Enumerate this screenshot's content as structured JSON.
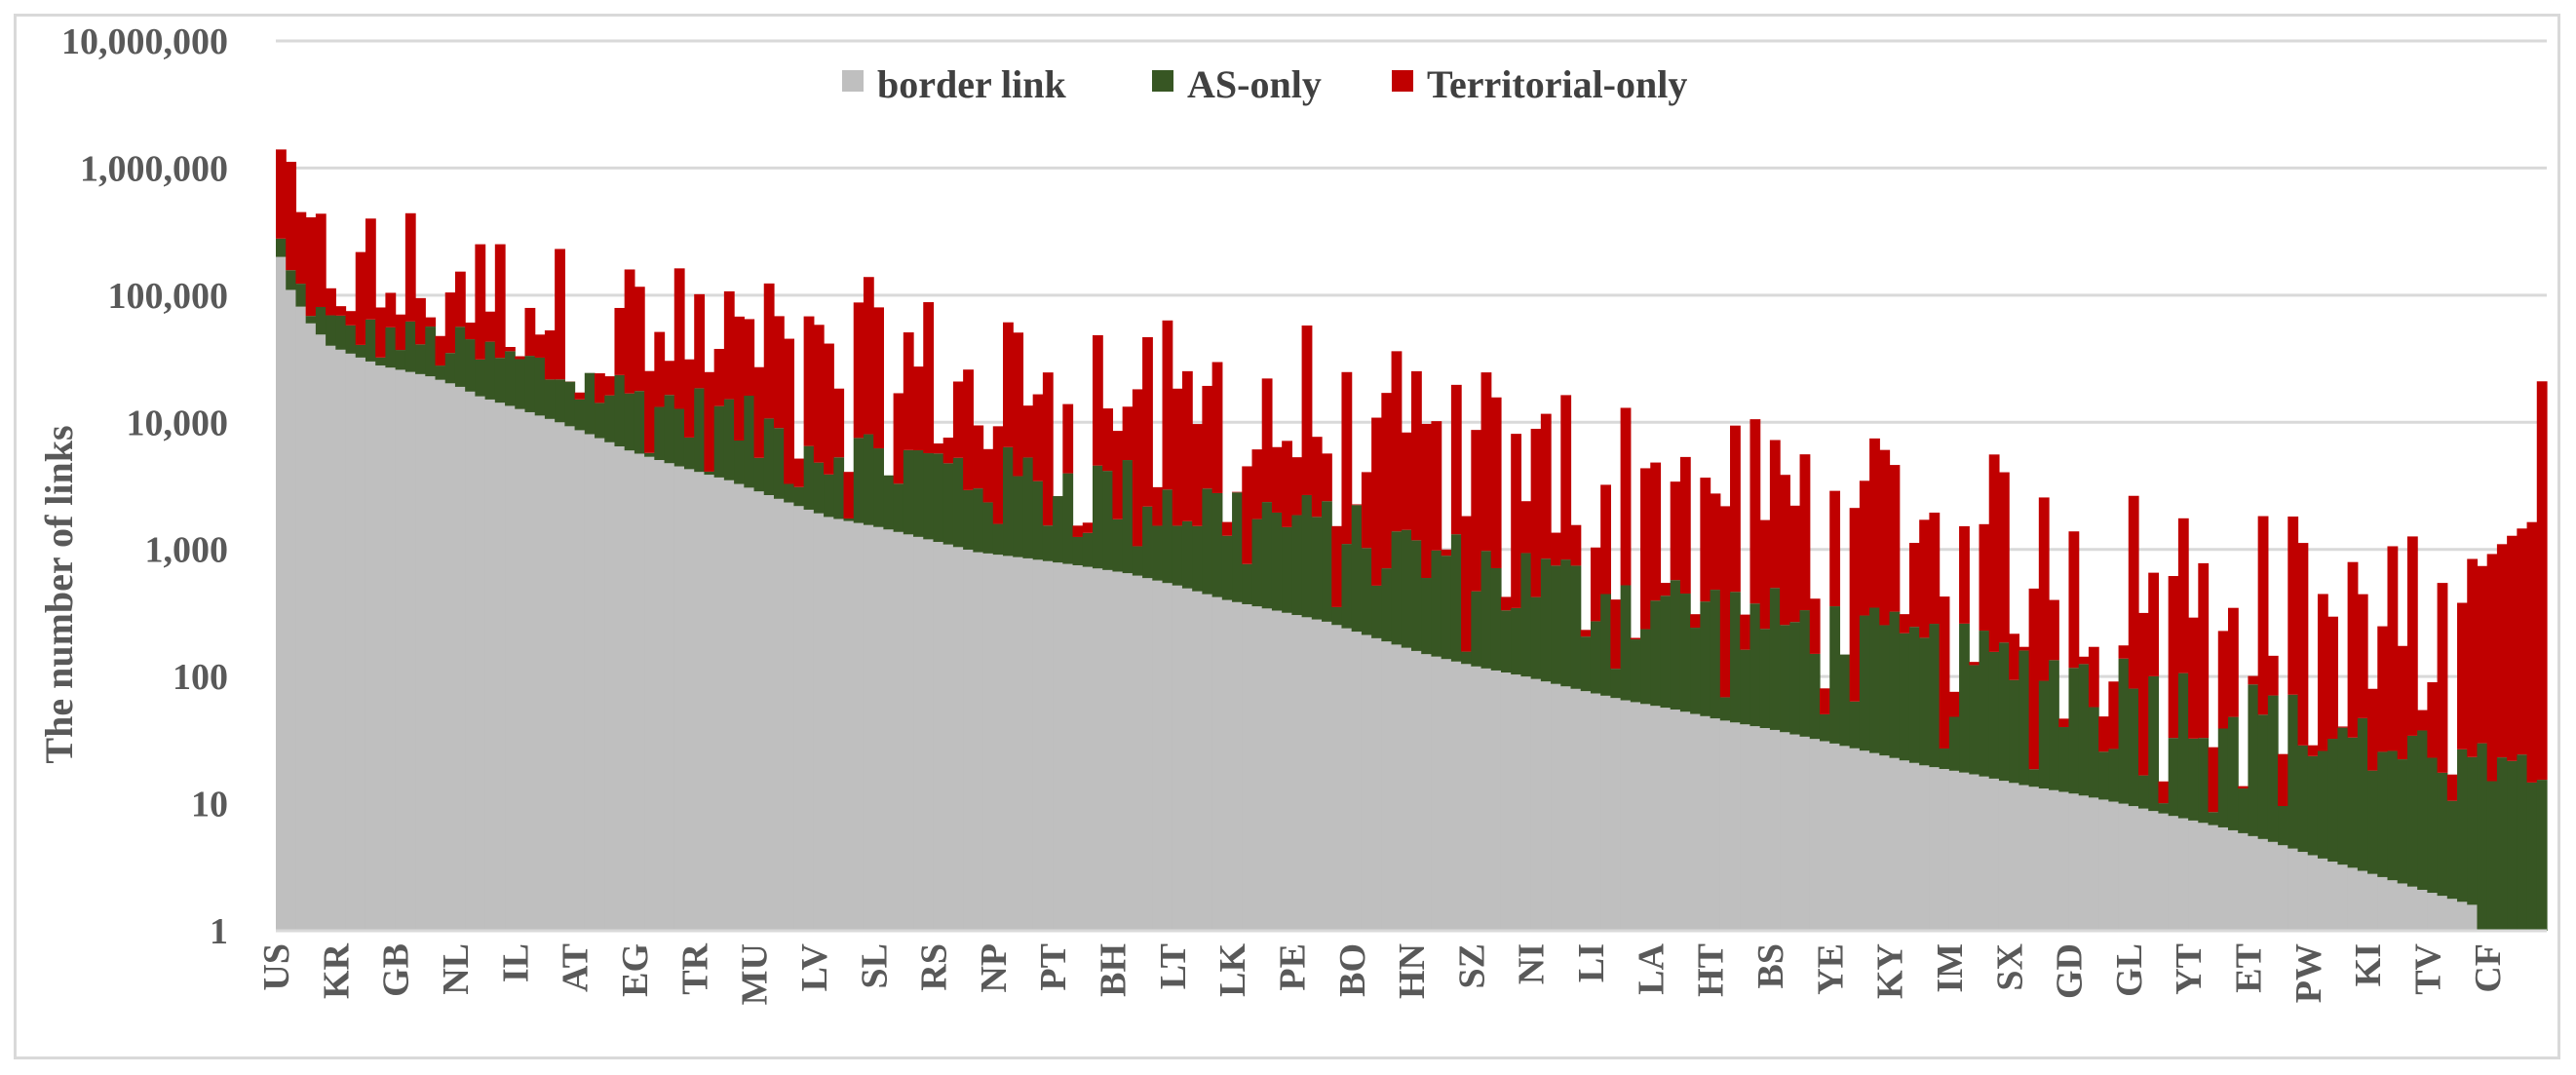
{
  "chart_data": {
    "type": "bar",
    "stacked": true,
    "yscale": "log",
    "ylabel": "The number of links",
    "ylim": [
      1,
      10000000
    ],
    "y_ticks": [
      "1",
      "10",
      "100",
      "1,000",
      "10,000",
      "100,000",
      "1,000,000",
      "10,000,000"
    ],
    "x_tick_labels": [
      "US",
      "KR",
      "GB",
      "NL",
      "IL",
      "AT",
      "EG",
      "TR",
      "MU",
      "LV",
      "SL",
      "RS",
      "NP",
      "PT",
      "BH",
      "LT",
      "LK",
      "PE",
      "BO",
      "HN",
      "SZ",
      "NI",
      "LI",
      "LA",
      "HT",
      "BS",
      "YE",
      "KY",
      "IM",
      "SX",
      "GD",
      "GL",
      "YT",
      "ET",
      "PW",
      "KI",
      "TV",
      "CF"
    ],
    "n_countries": 228,
    "legend": {
      "position": "top-center",
      "entries": [
        "border link",
        "AS-only",
        "Territorial-only"
      ]
    },
    "colors": {
      "border": "#bfbfbf",
      "as_only": "#375623",
      "territorial": "#c00000"
    },
    "series": [
      {
        "name": "border link",
        "color": "#bfbfbf",
        "anchors": [
          [
            0,
            200000
          ],
          [
            1,
            110000
          ],
          [
            3,
            60000
          ],
          [
            5,
            40000
          ],
          [
            10,
            28000
          ],
          [
            15,
            23000
          ],
          [
            18,
            19000
          ],
          [
            20,
            16000
          ],
          [
            25,
            12000
          ],
          [
            28,
            10000
          ],
          [
            32,
            7500
          ],
          [
            35,
            6000
          ],
          [
            40,
            4500
          ],
          [
            45,
            3500
          ],
          [
            50,
            2500
          ],
          [
            55,
            1800
          ],
          [
            60,
            1500
          ],
          [
            65,
            1200
          ],
          [
            70,
            950
          ],
          [
            75,
            850
          ],
          [
            80,
            750
          ],
          [
            85,
            650
          ],
          [
            90,
            520
          ],
          [
            95,
            400
          ],
          [
            100,
            330
          ],
          [
            105,
            270
          ],
          [
            110,
            200
          ],
          [
            115,
            150
          ],
          [
            120,
            120
          ],
          [
            125,
            100
          ],
          [
            130,
            80
          ],
          [
            135,
            65
          ],
          [
            140,
            55
          ],
          [
            145,
            45
          ],
          [
            150,
            38
          ],
          [
            155,
            31
          ],
          [
            160,
            25
          ],
          [
            165,
            20
          ],
          [
            170,
            17
          ],
          [
            175,
            14
          ],
          [
            180,
            12
          ],
          [
            185,
            10
          ],
          [
            190,
            8
          ],
          [
            195,
            6.5
          ],
          [
            200,
            5
          ],
          [
            205,
            3.7
          ],
          [
            210,
            2.8
          ],
          [
            215,
            2.1
          ],
          [
            220,
            1.6
          ],
          [
            221,
            1
          ],
          [
            227,
            1
          ]
        ]
      },
      {
        "name": "AS-only",
        "color": "#375623",
        "description": "top of AS-only stack per country (log units)"
      },
      {
        "name": "Territorial-only",
        "color": "#c00000",
        "description": "top of territorial stack per country (log units)"
      }
    ]
  }
}
